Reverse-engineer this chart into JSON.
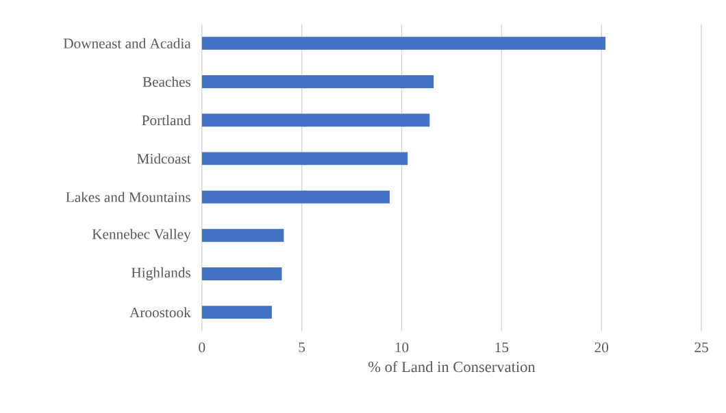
{
  "chart_data": {
    "type": "bar",
    "orientation": "horizontal",
    "xlabel": "% of Land in Conservation",
    "categories": [
      "Downeast and Acadia",
      "Beaches",
      "Portland",
      "Midcoast",
      "Lakes and Mountains",
      "Kennebec Valley",
      "Highlands",
      "Aroostook"
    ],
    "values": [
      20.2,
      11.6,
      11.4,
      10.3,
      9.4,
      4.1,
      4.0,
      3.5
    ],
    "color": "#4472c4",
    "xlim": [
      0,
      25
    ],
    "xticks": [
      0,
      5,
      10,
      15,
      20,
      25
    ],
    "grid": "x"
  }
}
